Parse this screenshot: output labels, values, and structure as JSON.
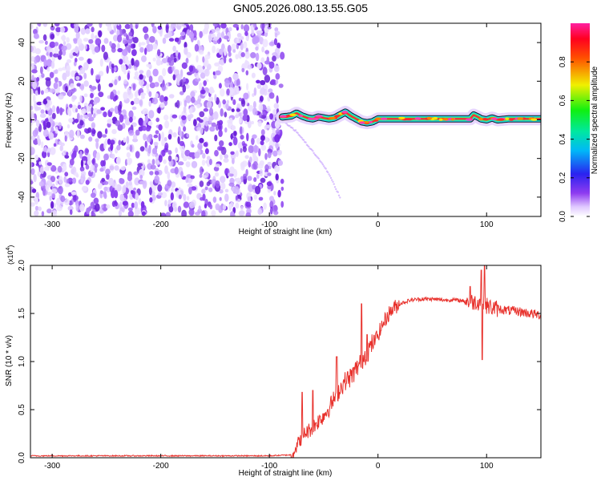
{
  "title": "GN05.2026.080.13.55.G05",
  "chart_data": [
    {
      "type": "heatmap",
      "title": "GN05.2026.080.13.55.G05",
      "xlabel": "Height of straight line (km)",
      "ylabel": "Frequency (Hz)",
      "xlim": [
        -320,
        150
      ],
      "ylim": [
        -50,
        50
      ],
      "xticks": [
        -300,
        -200,
        -100,
        0,
        100
      ],
      "yticks": [
        -40,
        -20,
        0,
        20,
        40
      ],
      "noise_region_x": [
        -320,
        -88
      ],
      "signal_track": {
        "x": [
          -88,
          -80,
          -75,
          -70,
          -65,
          -60,
          -55,
          -50,
          -45,
          -40,
          -35,
          -30,
          -25,
          -20,
          -15,
          -10,
          -5,
          0,
          10,
          30,
          50,
          70,
          85,
          88,
          92,
          95,
          100,
          105,
          110,
          120,
          150
        ],
        "frequency": [
          1.5,
          2.0,
          3.5,
          2.0,
          1.0,
          0.5,
          1.5,
          1.0,
          0.5,
          1.0,
          2.5,
          4.0,
          2.0,
          0.5,
          -1.0,
          -1.5,
          -1.0,
          0.5,
          0.5,
          0.5,
          0.5,
          0.5,
          0.5,
          2.5,
          1.5,
          0.5,
          0.0,
          1.0,
          0.0,
          0.5,
          0.5
        ]
      },
      "faint_branch": {
        "x": [
          -85,
          -75,
          -65,
          -55,
          -45,
          -40,
          -35
        ],
        "frequency": [
          -2,
          -6,
          -13,
          -20,
          -28,
          -34,
          -40
        ]
      },
      "colorbar": {
        "label": "Normalized spectral amplitude",
        "range": [
          0.0,
          1.0
        ],
        "ticks": [
          0.0,
          0.2,
          0.4,
          0.6,
          0.8
        ],
        "tick_labels": [
          "0.0",
          "0.2",
          "0.4",
          "0.6",
          "0.8"
        ]
      }
    },
    {
      "type": "line",
      "xlabel": "Height of straight line (km)",
      "ylabel": "SNR (10 * v/v)",
      "y_multiplier": "(x10",
      "y_multiplier_exp": "4",
      "xlim": [
        -320,
        150
      ],
      "ylim": [
        0.0,
        2.0
      ],
      "xticks": [
        -300,
        -200,
        -100,
        0,
        100
      ],
      "yticks": [
        0.0,
        0.5,
        1.0,
        1.5,
        2.0
      ],
      "ytick_labels": [
        "0.0",
        "0.5",
        "1.0",
        "1.5",
        "2.0"
      ],
      "line_color": "#e8312c",
      "series": [
        {
          "name": "SNR",
          "x": [
            -320,
            -100,
            -80,
            -77,
            -72,
            -68,
            -64,
            -60,
            -55,
            -50,
            -45,
            -40,
            -35,
            -30,
            -25,
            -20,
            -15,
            -10,
            -5,
            0,
            5,
            10,
            15,
            20,
            30,
            40,
            50,
            60,
            70,
            80,
            85,
            90,
            95,
            98,
            100,
            105,
            110,
            120,
            130,
            140,
            150
          ],
          "y": [
            0.02,
            0.02,
            0.03,
            0.08,
            0.18,
            0.25,
            0.28,
            0.32,
            0.38,
            0.44,
            0.52,
            0.62,
            0.72,
            0.8,
            0.84,
            0.92,
            1.02,
            1.1,
            1.18,
            1.28,
            1.4,
            1.5,
            1.56,
            1.6,
            1.64,
            1.65,
            1.65,
            1.64,
            1.64,
            1.63,
            1.62,
            1.62,
            1.62,
            1.6,
            1.58,
            1.56,
            1.55,
            1.53,
            1.52,
            1.5,
            1.48
          ]
        }
      ],
      "spikes": [
        {
          "x": -70,
          "y": 0.68
        },
        {
          "x": -60,
          "y": 0.7
        },
        {
          "x": -38,
          "y": 1.05
        },
        {
          "x": -15,
          "y": 1.6
        },
        {
          "x": -10,
          "y": 1.28
        },
        {
          "x": 85,
          "y": 1.78
        },
        {
          "x": 95,
          "y": 1.95
        },
        {
          "x": 98,
          "y": 2.0
        },
        {
          "x": 96,
          "y": 1.02
        }
      ]
    }
  ]
}
